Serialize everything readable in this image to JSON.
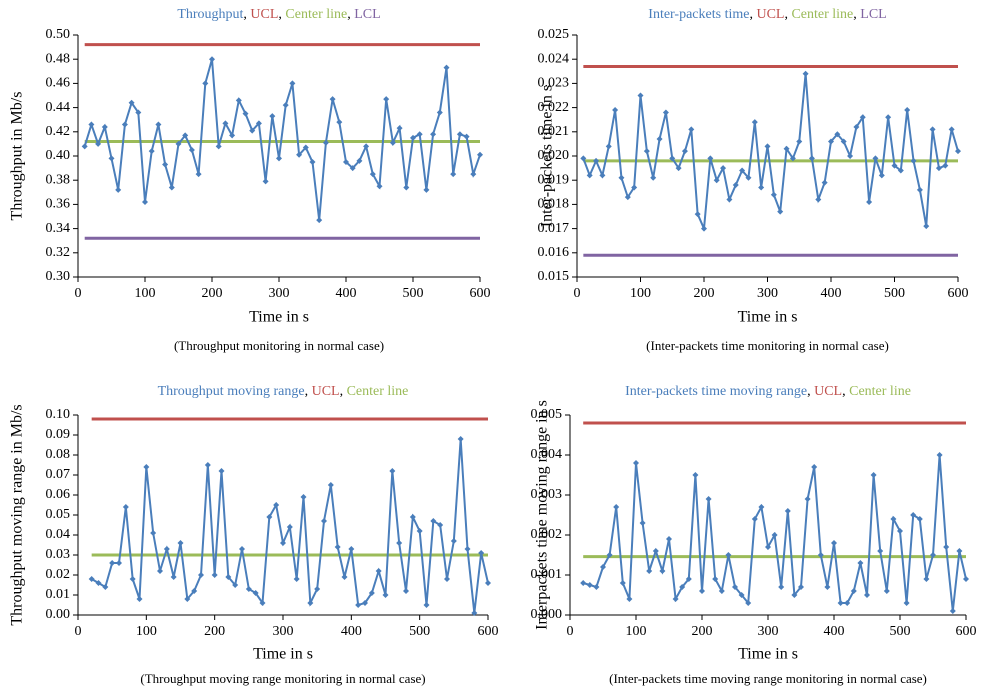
{
  "chart_data": [
    {
      "type": "line",
      "xlabel": "Time in s",
      "ylabel": "Throughput in Mb/s",
      "caption": "(Throughput monitoring in normal case)",
      "legend_separator": ", ",
      "xlim": [
        0,
        600
      ],
      "xticks": [
        0,
        100,
        200,
        300,
        400,
        500,
        600
      ],
      "ylim": [
        0.3,
        0.5
      ],
      "yticks": [
        {
          "value": 0.3,
          "label": "0.30"
        },
        0.32,
        0.34,
        0.36,
        0.38,
        {
          "value": 0.4,
          "label": "0.40"
        },
        0.42,
        0.44,
        0.46,
        0.48,
        {
          "value": 0.5,
          "label": "0.50"
        }
      ],
      "series": [
        {
          "name": "Throughput",
          "color": "#4a7ebb",
          "markers": true,
          "x": [
            10,
            20,
            30,
            40,
            50,
            60,
            70,
            80,
            90,
            100,
            110,
            120,
            130,
            140,
            150,
            160,
            170,
            180,
            190,
            200,
            210,
            220,
            230,
            240,
            250,
            260,
            270,
            280,
            290,
            300,
            310,
            320,
            330,
            340,
            350,
            360,
            370,
            380,
            390,
            400,
            410,
            420,
            430,
            440,
            450,
            460,
            470,
            480,
            490,
            500,
            510,
            520,
            530,
            540,
            550,
            560,
            570,
            580,
            590,
            600
          ],
          "values": [
            0.408,
            0.426,
            0.41,
            0.424,
            0.398,
            0.372,
            0.426,
            0.444,
            0.436,
            0.362,
            0.404,
            0.426,
            0.393,
            0.374,
            0.41,
            0.417,
            0.405,
            0.385,
            0.46,
            0.48,
            0.408,
            0.427,
            0.417,
            0.446,
            0.435,
            0.421,
            0.427,
            0.379,
            0.433,
            0.398,
            0.442,
            0.46,
            0.401,
            0.407,
            0.395,
            0.347,
            0.411,
            0.447,
            0.428,
            0.395,
            0.39,
            0.396,
            0.408,
            0.385,
            0.375,
            0.447,
            0.411,
            0.423,
            0.374,
            0.415,
            0.418,
            0.372,
            0.418,
            0.436,
            0.473,
            0.385,
            0.418,
            0.416,
            0.385,
            0.401
          ]
        },
        {
          "name": "UCL",
          "color": "#c0504d",
          "x": [
            10,
            600
          ],
          "values": [
            0.492,
            0.492
          ]
        },
        {
          "name": "Center line",
          "color": "#9bbb59",
          "x": [
            10,
            600
          ],
          "values": [
            0.412,
            0.412
          ]
        },
        {
          "name": "LCL",
          "color": "#8064a2",
          "x": [
            10,
            600
          ],
          "values": [
            0.332,
            0.332
          ]
        }
      ]
    },
    {
      "type": "line",
      "xlabel": "Time in s",
      "ylabel": "Inter-packets time in s",
      "caption": "(Inter-packets time monitoring in normal case)",
      "legend_separator": ", ",
      "xlim": [
        0,
        600
      ],
      "xticks": [
        0,
        100,
        200,
        300,
        400,
        500,
        600
      ],
      "ylim": [
        0.015,
        0.025
      ],
      "yticks": [
        0.015,
        0.016,
        0.017,
        0.018,
        0.019,
        {
          "value": 0.02,
          "label": "0.020"
        },
        0.021,
        0.022,
        0.023,
        0.024,
        0.025
      ],
      "series": [
        {
          "name": "Inter-packets time",
          "color": "#4a7ebb",
          "markers": true,
          "x": [
            10,
            20,
            30,
            40,
            50,
            60,
            70,
            80,
            90,
            100,
            110,
            120,
            130,
            140,
            150,
            160,
            170,
            180,
            190,
            200,
            210,
            220,
            230,
            240,
            250,
            260,
            270,
            280,
            290,
            300,
            310,
            320,
            330,
            340,
            350,
            360,
            370,
            380,
            390,
            400,
            410,
            420,
            430,
            440,
            450,
            460,
            470,
            480,
            490,
            500,
            510,
            520,
            530,
            540,
            550,
            560,
            570,
            580,
            590,
            600
          ],
          "values": [
            0.0199,
            0.0192,
            0.0198,
            0.0192,
            0.0204,
            0.0219,
            0.0191,
            0.0183,
            0.0187,
            0.0225,
            0.0202,
            0.0191,
            0.0207,
            0.0218,
            0.0199,
            0.0195,
            0.0202,
            0.0211,
            0.0176,
            0.017,
            0.0199,
            0.019,
            0.0195,
            0.0182,
            0.0188,
            0.0194,
            0.0191,
            0.0214,
            0.0187,
            0.0204,
            0.0184,
            0.0177,
            0.0203,
            0.0199,
            0.0206,
            0.0234,
            0.0199,
            0.0182,
            0.0189,
            0.0206,
            0.0209,
            0.0206,
            0.02,
            0.0212,
            0.0216,
            0.0181,
            0.0199,
            0.0192,
            0.0216,
            0.0196,
            0.0194,
            0.0219,
            0.0198,
            0.0186,
            0.0171,
            0.0211,
            0.0195,
            0.0196,
            0.0211,
            0.0202
          ]
        },
        {
          "name": "UCL",
          "color": "#c0504d",
          "x": [
            10,
            600
          ],
          "values": [
            0.0237,
            0.0237
          ]
        },
        {
          "name": "Center line",
          "color": "#9bbb59",
          "x": [
            10,
            600
          ],
          "values": [
            0.0198,
            0.0198
          ]
        },
        {
          "name": "LCL",
          "color": "#8064a2",
          "x": [
            10,
            600
          ],
          "values": [
            0.0159,
            0.0159
          ]
        }
      ]
    },
    {
      "type": "line",
      "xlabel": "Time in s",
      "ylabel": "Throughput moving range in Mb/s",
      "caption": "(Throughput moving range monitoring in normal case)",
      "legend_separator": ", ",
      "xlim": [
        0,
        600
      ],
      "xticks": [
        0,
        100,
        200,
        300,
        400,
        500,
        600
      ],
      "ylim": [
        0,
        0.1
      ],
      "yticks": [
        {
          "value": 0,
          "label": "0.00"
        },
        0.01,
        0.02,
        0.03,
        0.04,
        0.05,
        0.06,
        0.07,
        0.08,
        0.09,
        {
          "value": 0.1,
          "label": "0.10"
        }
      ],
      "series": [
        {
          "name": "Throughput moving range",
          "color": "#4a7ebb",
          "markers": true,
          "x": [
            20,
            30,
            40,
            50,
            60,
            70,
            80,
            90,
            100,
            110,
            120,
            130,
            140,
            150,
            160,
            170,
            180,
            190,
            200,
            210,
            220,
            230,
            240,
            250,
            260,
            270,
            280,
            290,
            300,
            310,
            320,
            330,
            340,
            350,
            360,
            370,
            380,
            390,
            400,
            410,
            420,
            430,
            440,
            450,
            460,
            470,
            480,
            490,
            500,
            510,
            520,
            530,
            540,
            550,
            560,
            570,
            580,
            590,
            600
          ],
          "values": [
            0.018,
            0.016,
            0.014,
            0.026,
            0.026,
            0.054,
            0.018,
            0.008,
            0.074,
            0.041,
            0.022,
            0.033,
            0.019,
            0.036,
            0.008,
            0.012,
            0.02,
            0.075,
            0.02,
            0.072,
            0.019,
            0.015,
            0.033,
            0.013,
            0.011,
            0.006,
            0.049,
            0.055,
            0.036,
            0.044,
            0.018,
            0.059,
            0.006,
            0.013,
            0.047,
            0.065,
            0.034,
            0.019,
            0.033,
            0.005,
            0.006,
            0.011,
            0.022,
            0.01,
            0.072,
            0.036,
            0.012,
            0.049,
            0.042,
            0.005,
            0.047,
            0.045,
            0.018,
            0.037,
            0.088,
            0.033,
            0.001,
            0.031,
            0.016
          ]
        },
        {
          "name": "UCL",
          "color": "#c0504d",
          "x": [
            20,
            600
          ],
          "values": [
            0.098,
            0.098
          ]
        },
        {
          "name": "Center line",
          "color": "#9bbb59",
          "x": [
            20,
            600
          ],
          "values": [
            0.03,
            0.03
          ]
        }
      ]
    },
    {
      "type": "line",
      "xlabel": "Time in s",
      "ylabel": "Interpackets time moving range in s",
      "caption": "(Inter-packets time moving range monitoring in normal case)",
      "legend_separator": ", ",
      "xlim": [
        0,
        600
      ],
      "xticks": [
        0,
        100,
        200,
        300,
        400,
        500,
        600
      ],
      "ylim": [
        0,
        0.005
      ],
      "yticks": [
        {
          "value": 0,
          "label": "0.000"
        },
        0.001,
        0.002,
        0.003,
        0.004,
        0.005
      ],
      "series": [
        {
          "name": "Inter-packets time moving range",
          "color": "#4a7ebb",
          "markers": true,
          "x": [
            20,
            30,
            40,
            50,
            60,
            70,
            80,
            90,
            100,
            110,
            120,
            130,
            140,
            150,
            160,
            170,
            180,
            190,
            200,
            210,
            220,
            230,
            240,
            250,
            260,
            270,
            280,
            290,
            300,
            310,
            320,
            330,
            340,
            350,
            360,
            370,
            380,
            390,
            400,
            410,
            420,
            430,
            440,
            450,
            460,
            470,
            480,
            490,
            500,
            510,
            520,
            530,
            540,
            550,
            560,
            570,
            580,
            590,
            600
          ],
          "values": [
            0.0008,
            0.00075,
            0.0007,
            0.0012,
            0.0015,
            0.0027,
            0.0008,
            0.0004,
            0.0038,
            0.0023,
            0.0011,
            0.0016,
            0.0011,
            0.0019,
            0.0004,
            0.0007,
            0.0009,
            0.0035,
            0.0006,
            0.0029,
            0.0009,
            0.0006,
            0.0015,
            0.0007,
            0.0005,
            0.0003,
            0.0024,
            0.0027,
            0.0017,
            0.002,
            0.0007,
            0.0026,
            0.0005,
            0.0007,
            0.0029,
            0.0037,
            0.0015,
            0.0007,
            0.0018,
            0.0003,
            0.0003,
            0.0006,
            0.0013,
            0.0005,
            0.0035,
            0.0016,
            0.0006,
            0.0024,
            0.0021,
            0.0003,
            0.0025,
            0.0024,
            0.0009,
            0.0015,
            0.004,
            0.0017,
            0.0001,
            0.0016,
            0.0009
          ]
        },
        {
          "name": "UCL",
          "color": "#c0504d",
          "x": [
            20,
            600
          ],
          "values": [
            0.0048,
            0.0048
          ]
        },
        {
          "name": "Center line",
          "color": "#9bbb59",
          "x": [
            20,
            600
          ],
          "values": [
            0.00146,
            0.00146
          ]
        }
      ]
    }
  ]
}
